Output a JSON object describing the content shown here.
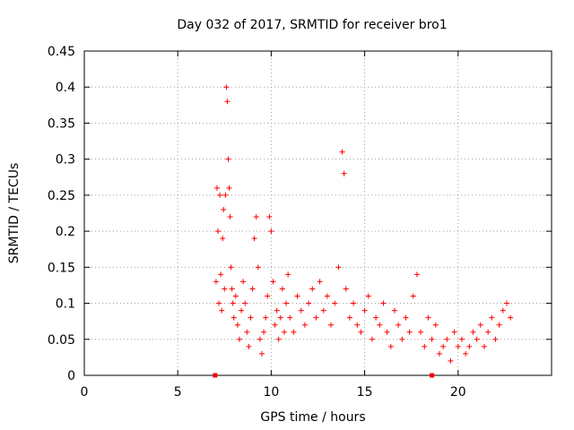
{
  "chart_data": {
    "type": "scatter",
    "title": "Day 032 of 2017, SRMTID for receiver bro1",
    "xlabel": "GPS time / hours",
    "ylabel": "SRMTID / TECUs",
    "xlim": [
      0,
      25
    ],
    "ylim": [
      0,
      0.45
    ],
    "x_ticks": [
      0,
      5,
      10,
      15,
      20
    ],
    "x_tick_labels": [
      "0",
      "5",
      "10",
      "15",
      "20"
    ],
    "y_ticks": [
      0,
      0.05,
      0.1,
      0.15,
      0.2,
      0.25,
      0.3,
      0.35,
      0.4,
      0.45
    ],
    "y_tick_labels": [
      "0",
      "0.05",
      "0.1",
      "0.15",
      "0.2",
      "0.25",
      "0.3",
      "0.35",
      "0.4",
      "0.45"
    ],
    "grid": true,
    "marker": "+",
    "series": [
      {
        "name": "SRMTID",
        "color": "#ff0000",
        "x": [
          7.05,
          7.1,
          7.15,
          7.2,
          7.25,
          7.3,
          7.35,
          7.4,
          7.45,
          7.5,
          7.55,
          7.6,
          7.65,
          7.7,
          7.75,
          7.8,
          7.85,
          7.9,
          7.95,
          8.0,
          8.1,
          8.2,
          8.3,
          8.4,
          8.5,
          8.6,
          8.7,
          8.8,
          8.9,
          9.0,
          9.1,
          9.2,
          9.3,
          9.4,
          9.5,
          9.6,
          9.7,
          9.8,
          9.9,
          10.0,
          10.1,
          10.2,
          10.3,
          10.4,
          10.5,
          10.6,
          10.7,
          10.8,
          10.9,
          11.0,
          11.2,
          11.4,
          11.6,
          11.8,
          12.0,
          12.2,
          12.4,
          12.6,
          12.8,
          13.0,
          13.2,
          13.4,
          13.6,
          13.8,
          13.9,
          14.0,
          14.2,
          14.4,
          14.6,
          14.8,
          15.0,
          15.2,
          15.4,
          15.6,
          15.8,
          16.0,
          16.2,
          16.4,
          16.6,
          16.8,
          17.0,
          17.2,
          17.4,
          17.6,
          17.8,
          18.0,
          18.2,
          18.4,
          18.6,
          18.8,
          19.0,
          19.2,
          19.4,
          19.6,
          19.8,
          20.0,
          20.2,
          20.4,
          20.6,
          20.8,
          21.0,
          21.2,
          21.4,
          21.6,
          21.8,
          22.0,
          22.2,
          22.4,
          22.6,
          22.8
        ],
        "y": [
          0.13,
          0.26,
          0.2,
          0.1,
          0.25,
          0.14,
          0.09,
          0.19,
          0.23,
          0.12,
          0.25,
          0.4,
          0.38,
          0.3,
          0.26,
          0.22,
          0.15,
          0.12,
          0.1,
          0.08,
          0.11,
          0.07,
          0.05,
          0.09,
          0.13,
          0.1,
          0.06,
          0.04,
          0.08,
          0.12,
          0.19,
          0.22,
          0.15,
          0.05,
          0.03,
          0.06,
          0.08,
          0.11,
          0.22,
          0.2,
          0.13,
          0.07,
          0.09,
          0.05,
          0.08,
          0.12,
          0.06,
          0.1,
          0.14,
          0.08,
          0.06,
          0.11,
          0.09,
          0.07,
          0.1,
          0.12,
          0.08,
          0.13,
          0.09,
          0.11,
          0.07,
          0.1,
          0.15,
          0.31,
          0.28,
          0.12,
          0.08,
          0.1,
          0.07,
          0.06,
          0.09,
          0.11,
          0.05,
          0.08,
          0.07,
          0.1,
          0.06,
          0.04,
          0.09,
          0.07,
          0.05,
          0.08,
          0.06,
          0.11,
          0.14,
          0.06,
          0.04,
          0.08,
          0.05,
          0.07,
          0.03,
          0.04,
          0.05,
          0.02,
          0.06,
          0.04,
          0.05,
          0.03,
          0.04,
          0.06,
          0.05,
          0.07,
          0.04,
          0.06,
          0.08,
          0.05,
          0.07,
          0.09,
          0.1,
          0.08
        ],
        "ground_markers_x": [
          7.0,
          18.6
        ]
      }
    ]
  }
}
